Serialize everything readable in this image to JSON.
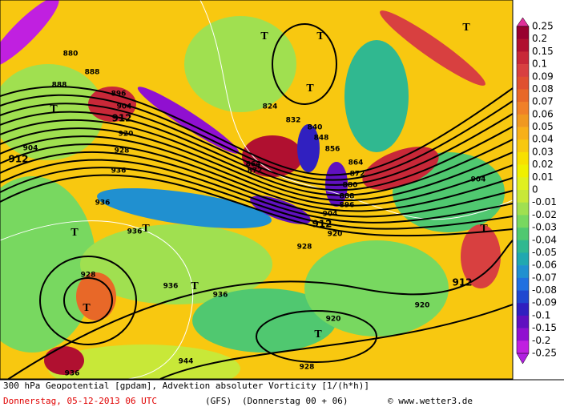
{
  "footer": {
    "title": "300 hPa Geopotential [gpdam], Advektion absoluter Vorticity [1/(h*h)]",
    "date": "Donnerstag, 05-12-2013  06 UTC",
    "model": "(GFS)",
    "run": "(Donnerstag 00 + 06)",
    "credit": "© www.wetter3.de"
  },
  "colorbar": {
    "levels": [
      0.25,
      0.2,
      0.15,
      0.1,
      0.09,
      0.08,
      0.07,
      0.06,
      0.05,
      0.04,
      0.03,
      0.02,
      0.01,
      0,
      -0.01,
      -0.02,
      -0.03,
      -0.04,
      -0.05,
      -0.06,
      -0.07,
      -0.08,
      -0.09,
      -0.1,
      -0.15,
      -0.2,
      -0.25
    ],
    "colors": [
      "#980030",
      "#b01030",
      "#c82838",
      "#d84040",
      "#e05030",
      "#e86828",
      "#f08028",
      "#f09820",
      "#f8b018",
      "#f8c810",
      "#f8e000",
      "#f0f000",
      "#e0f020",
      "#c8e838",
      "#a0e050",
      "#78d860",
      "#50c870",
      "#30b890",
      "#20a8b0",
      "#2090d0",
      "#2070e0",
      "#2048d0",
      "#3020c0",
      "#6010c0",
      "#9010d0",
      "#c020e0"
    ]
  },
  "contour_labels": [
    880,
    888,
    888,
    896,
    904,
    912,
    920,
    928,
    936,
    904,
    912,
    824,
    832,
    840,
    848,
    856,
    864,
    872,
    864,
    872,
    880,
    888,
    896,
    904,
    912,
    920,
    928,
    936,
    936,
    936,
    936,
    928,
    920,
    912,
    920,
    944,
    928,
    936,
    904
  ],
  "pressure_marks": [
    "T",
    "T",
    "T",
    "T",
    "T",
    "T",
    "T",
    "T",
    "T",
    "T",
    "T"
  ]
}
